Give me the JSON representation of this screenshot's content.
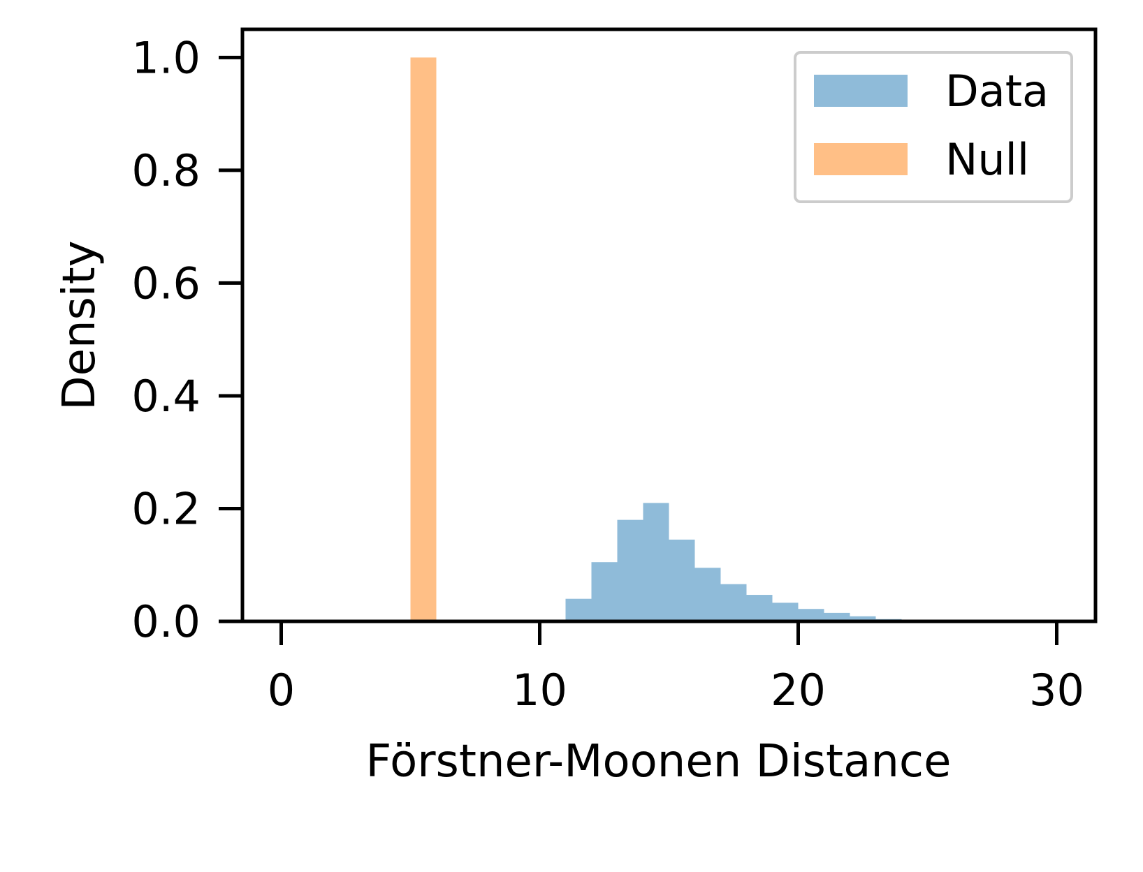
{
  "chart_data": {
    "type": "bar",
    "title": "",
    "xlabel": "Förstner-Moonen Distance",
    "ylabel": "Density",
    "xlim": [
      -1.5,
      31.5
    ],
    "ylim": [
      0,
      1.05
    ],
    "xticks": [
      0,
      10,
      20,
      30
    ],
    "xtick_labels": [
      "0",
      "10",
      "20",
      "30"
    ],
    "yticks": [
      0.0,
      0.2,
      0.4,
      0.6,
      0.8,
      1.0
    ],
    "ytick_labels": [
      "0.0",
      "0.2",
      "0.4",
      "0.6",
      "0.8",
      "1.0"
    ],
    "grid": false,
    "legend_position": "top-right",
    "series": [
      {
        "name": "Data",
        "color": "#1f77b4",
        "opacity": 0.5,
        "bin_edges": [
          10,
          11,
          12,
          13,
          14,
          15,
          16,
          17,
          18,
          19,
          20,
          21,
          22,
          23,
          24
        ],
        "values": [
          0.003,
          0.04,
          0.105,
          0.18,
          0.21,
          0.145,
          0.095,
          0.066,
          0.047,
          0.033,
          0.022,
          0.015,
          0.009,
          0.004
        ]
      },
      {
        "name": "Null",
        "color": "#ff7f0e",
        "opacity": 0.5,
        "bin_edges": [
          5,
          6
        ],
        "values": [
          1.0
        ]
      }
    ]
  }
}
